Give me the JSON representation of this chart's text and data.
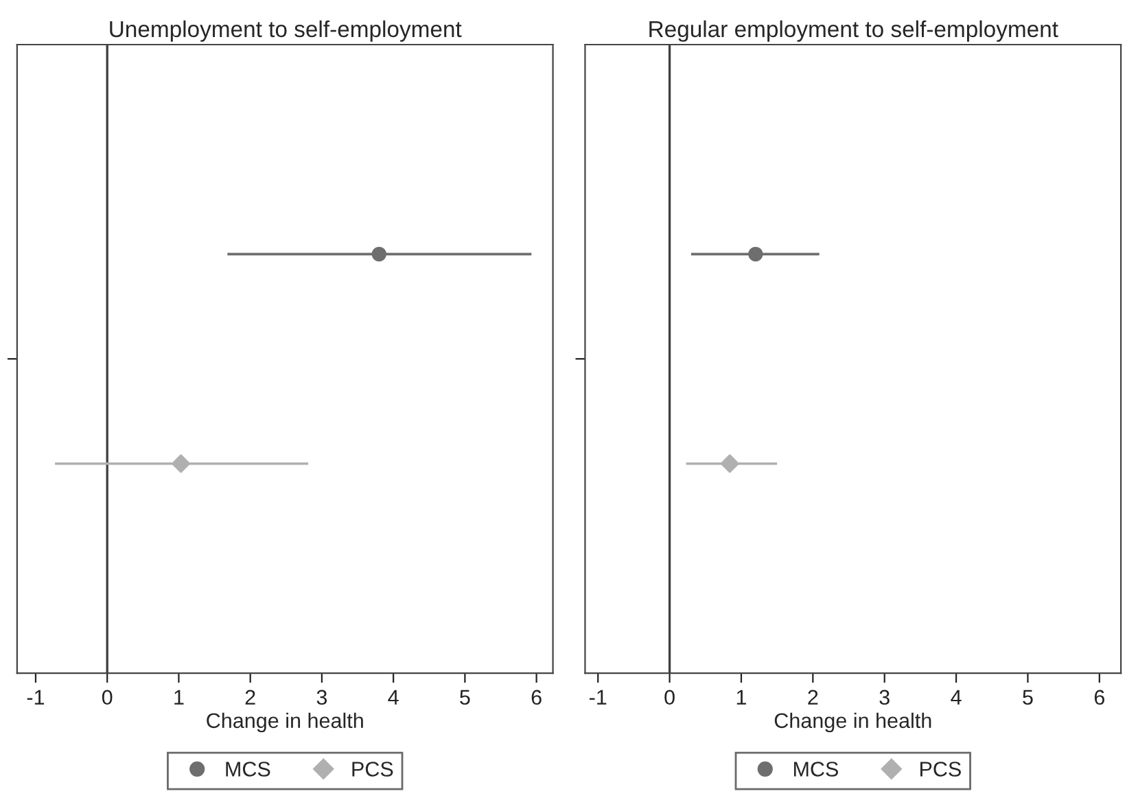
{
  "chart_data": [
    {
      "type": "scatter",
      "title": "Unemployment to self-employment",
      "xlabel": "Change in health",
      "orientation": "horizontal",
      "categories": [
        null
      ],
      "xlim": [
        -1.26,
        6.23
      ],
      "xticks": [
        -1,
        0,
        1,
        2,
        3,
        4,
        5,
        6
      ],
      "grid": false,
      "legend": "bottom",
      "ref_lines": [
        {
          "axis": "x",
          "value": 0,
          "color": "#404040"
        }
      ],
      "series": [
        {
          "name": "MCS",
          "color": "#6e6e6e",
          "marker": "circle",
          "values": [
            3.8
          ],
          "errors": [
            [
              1.68,
              5.93
            ]
          ]
        },
        {
          "name": "PCS",
          "color": "#b0b0b0",
          "marker": "diamond",
          "values": [
            1.03
          ],
          "errors": [
            [
              -0.73,
              2.81
            ]
          ]
        }
      ]
    },
    {
      "type": "scatter",
      "title": "Regular employment to self-employment",
      "xlabel": "Change in health",
      "orientation": "horizontal",
      "categories": [
        null
      ],
      "xlim": [
        -1.18,
        6.3
      ],
      "xticks": [
        -1,
        0,
        1,
        2,
        3,
        4,
        5,
        6
      ],
      "grid": false,
      "legend": "bottom",
      "ref_lines": [
        {
          "axis": "x",
          "value": 0,
          "color": "#404040"
        }
      ],
      "series": [
        {
          "name": "MCS",
          "color": "#6e6e6e",
          "marker": "circle",
          "values": [
            1.2
          ],
          "errors": [
            [
              0.3,
              2.09
            ]
          ]
        },
        {
          "name": "PCS",
          "color": "#b0b0b0",
          "marker": "diamond",
          "values": [
            0.84
          ],
          "errors": [
            [
              0.23,
              1.5
            ]
          ]
        }
      ]
    }
  ]
}
